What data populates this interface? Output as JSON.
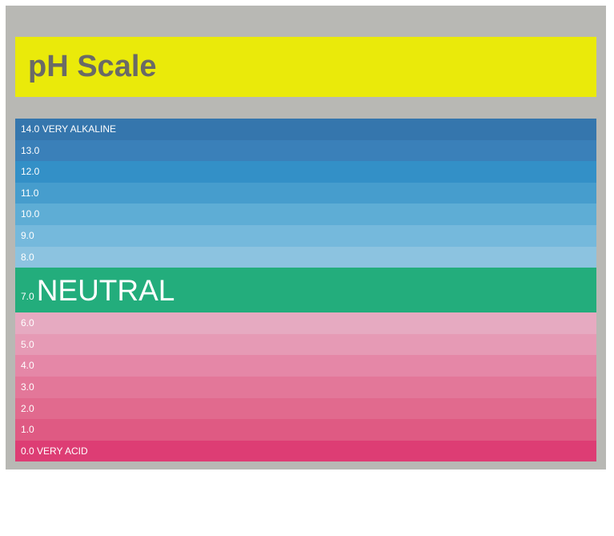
{
  "title": "pH Scale",
  "rows": [
    {
      "value": "14.0",
      "label": "VERY ALKALINE",
      "color": "#3576ad"
    },
    {
      "value": "13.0",
      "label": "",
      "color": "#3a80b9"
    },
    {
      "value": "12.0",
      "label": "",
      "color": "#3390c7"
    },
    {
      "value": "11.0",
      "label": "",
      "color": "#469dcd"
    },
    {
      "value": "10.0",
      "label": "",
      "color": "#5eadd5"
    },
    {
      "value": "9.0",
      "label": "",
      "color": "#75b9dc"
    },
    {
      "value": "8.0",
      "label": "",
      "color": "#8cc3e0"
    },
    {
      "value": "7.0",
      "label": "NEUTRAL",
      "color": "#23ad7c"
    },
    {
      "value": "6.0",
      "label": "",
      "color": "#e6aac1"
    },
    {
      "value": "5.0",
      "label": "",
      "color": "#e69ab5"
    },
    {
      "value": "4.0",
      "label": "",
      "color": "#e587a7"
    },
    {
      "value": "3.0",
      "label": "",
      "color": "#e37799"
    },
    {
      "value": "2.0",
      "label": "",
      "color": "#e16a8e"
    },
    {
      "value": "1.0",
      "label": "",
      "color": "#df5a83"
    },
    {
      "value": "0.0",
      "label": "VERY ACID",
      "color": "#dd3d74"
    }
  ]
}
